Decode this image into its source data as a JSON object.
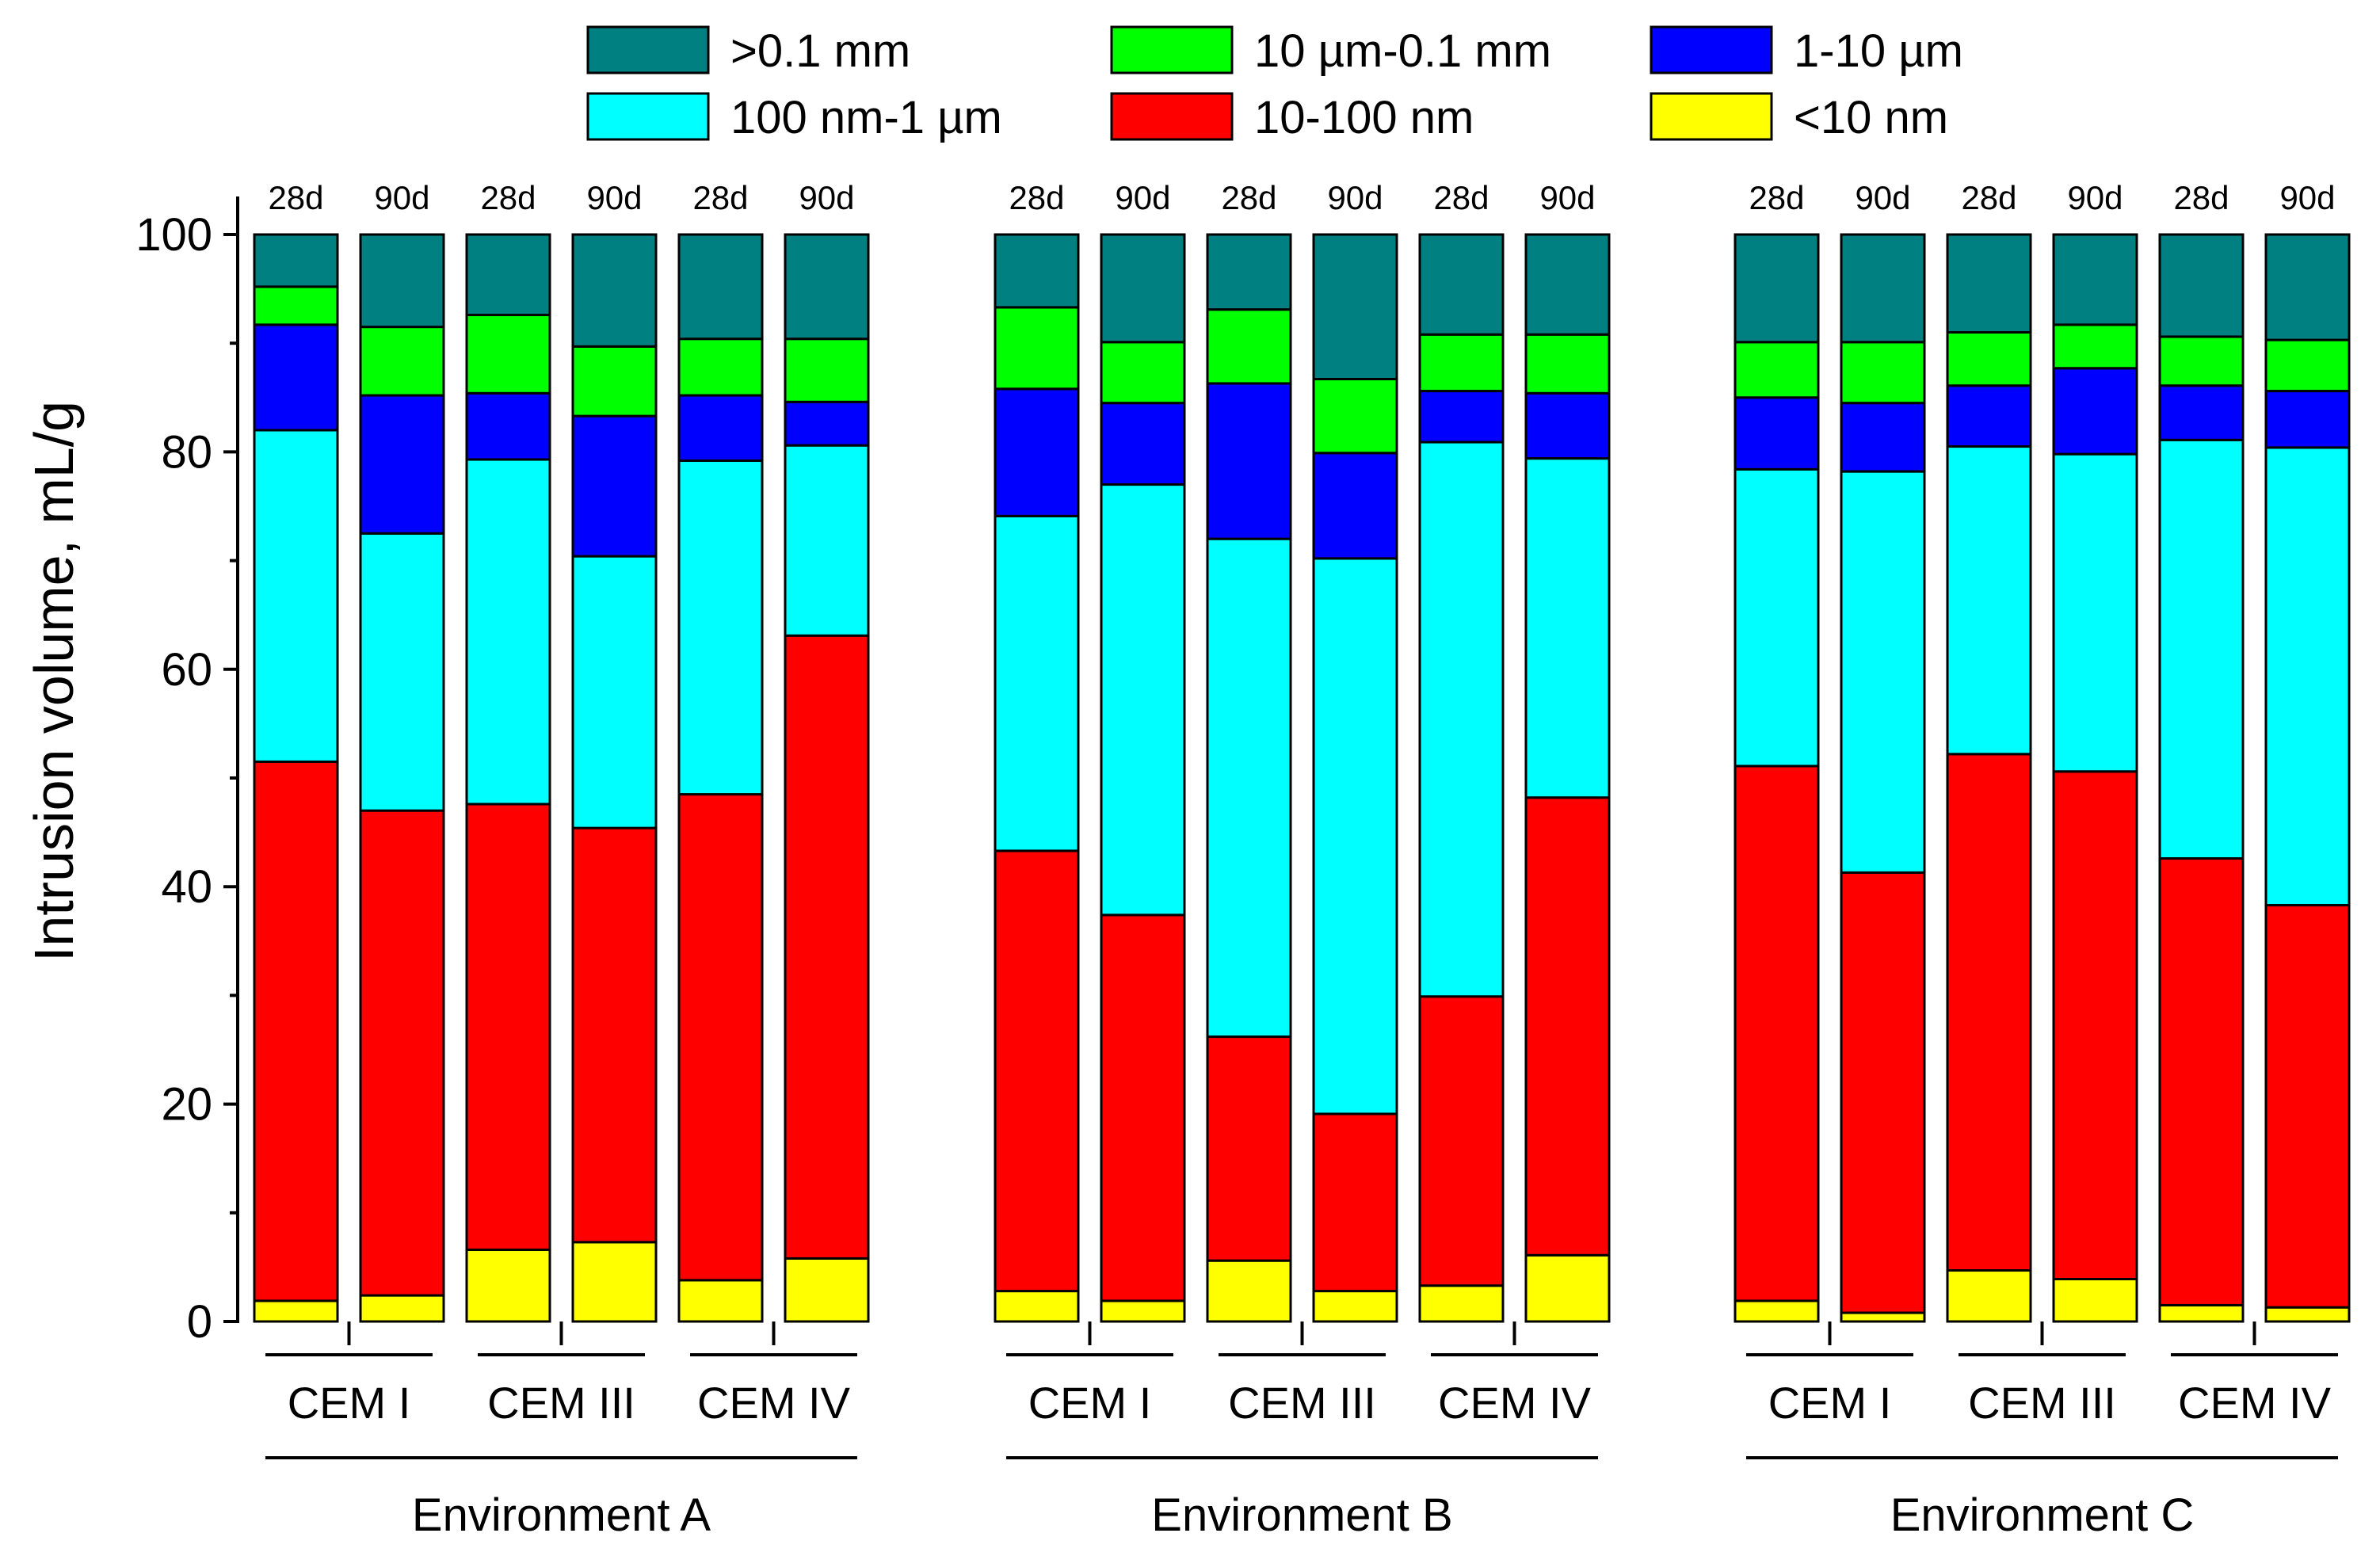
{
  "chart_data": {
    "type": "bar",
    "stacked": true,
    "ylabel": "Intrusion volume, mL/g",
    "ylim": [
      0,
      100
    ],
    "yticks": [
      0,
      20,
      40,
      60,
      80,
      100
    ],
    "colors": {
      "gt01mm": "#008080",
      "um10_01mm": "#00FF00",
      "um1_10": "#0000FF",
      "nm100_1um": "#00FFFF",
      "nm10_100": "#FF0000",
      "lt10nm": "#FFFF00"
    },
    "legend": [
      {
        "key": "gt01mm",
        "label": ">0.1 mm"
      },
      {
        "key": "um10_01mm",
        "label": "10 µm-0.1 mm"
      },
      {
        "key": "um1_10",
        "label": "1-10 µm"
      },
      {
        "key": "nm100_1um",
        "label": "100 nm-1 µm"
      },
      {
        "key": "nm10_100",
        "label": "10-100 nm"
      },
      {
        "key": "lt10nm",
        "label": "<10 nm"
      }
    ],
    "series_order": [
      "lt10nm",
      "nm10_100",
      "nm100_1um",
      "um1_10",
      "um10_01mm",
      "gt01mm"
    ],
    "environments": [
      {
        "label": "Environment A",
        "groups": [
          {
            "label": "CEM I",
            "bars": [
              {
                "day": "28d",
                "cum": [
                  1.9,
                  51.5,
                  82.0,
                  91.7,
                  95.2,
                  100
                ]
              },
              {
                "day": "90d",
                "cum": [
                  2.4,
                  47.0,
                  72.5,
                  85.2,
                  91.5,
                  100
                ]
              }
            ]
          },
          {
            "label": "CEM III",
            "bars": [
              {
                "day": "28d",
                "cum": [
                  6.6,
                  47.6,
                  79.3,
                  85.4,
                  92.6,
                  100
                ]
              },
              {
                "day": "90d",
                "cum": [
                  7.3,
                  45.4,
                  70.4,
                  83.3,
                  89.7,
                  100
                ]
              }
            ]
          },
          {
            "label": "CEM IV",
            "bars": [
              {
                "day": "28d",
                "cum": [
                  3.8,
                  48.5,
                  79.2,
                  85.2,
                  90.4,
                  100
                ]
              },
              {
                "day": "90d",
                "cum": [
                  5.8,
                  63.1,
                  80.6,
                  84.6,
                  90.4,
                  100
                ]
              }
            ]
          }
        ]
      },
      {
        "label": "Environment B",
        "groups": [
          {
            "label": "CEM I",
            "bars": [
              {
                "day": "28d",
                "cum": [
                  2.8,
                  43.3,
                  74.1,
                  85.8,
                  93.3,
                  100
                ]
              },
              {
                "day": "90d",
                "cum": [
                  1.9,
                  37.4,
                  77.0,
                  84.5,
                  90.1,
                  100
                ]
              }
            ]
          },
          {
            "label": "CEM III",
            "bars": [
              {
                "day": "28d",
                "cum": [
                  5.6,
                  26.2,
                  72.0,
                  86.3,
                  93.1,
                  100
                ]
              },
              {
                "day": "90d",
                "cum": [
                  2.8,
                  19.1,
                  70.2,
                  79.9,
                  86.7,
                  100
                ]
              }
            ]
          },
          {
            "label": "CEM IV",
            "bars": [
              {
                "day": "28d",
                "cum": [
                  3.3,
                  29.9,
                  80.9,
                  85.6,
                  90.8,
                  100
                ]
              },
              {
                "day": "90d",
                "cum": [
                  6.1,
                  48.2,
                  79.4,
                  85.4,
                  90.8,
                  100
                ]
              }
            ]
          }
        ]
      },
      {
        "label": "Environment C",
        "groups": [
          {
            "label": "CEM I",
            "bars": [
              {
                "day": "28d",
                "cum": [
                  1.9,
                  51.1,
                  78.4,
                  85.0,
                  90.1,
                  100
                ]
              },
              {
                "day": "90d",
                "cum": [
                  0.8,
                  41.3,
                  78.2,
                  84.5,
                  90.1,
                  100
                ]
              }
            ]
          },
          {
            "label": "CEM III",
            "bars": [
              {
                "day": "28d",
                "cum": [
                  4.7,
                  52.2,
                  80.5,
                  86.1,
                  91.0,
                  100
                ]
              },
              {
                "day": "90d",
                "cum": [
                  3.9,
                  50.6,
                  79.8,
                  87.7,
                  91.7,
                  100
                ]
              }
            ]
          },
          {
            "label": "CEM IV",
            "bars": [
              {
                "day": "28d",
                "cum": [
                  1.5,
                  42.6,
                  81.1,
                  86.1,
                  90.6,
                  100
                ]
              },
              {
                "day": "90d",
                "cum": [
                  1.3,
                  38.3,
                  80.4,
                  85.6,
                  90.3,
                  100
                ]
              }
            ]
          }
        ]
      }
    ]
  }
}
